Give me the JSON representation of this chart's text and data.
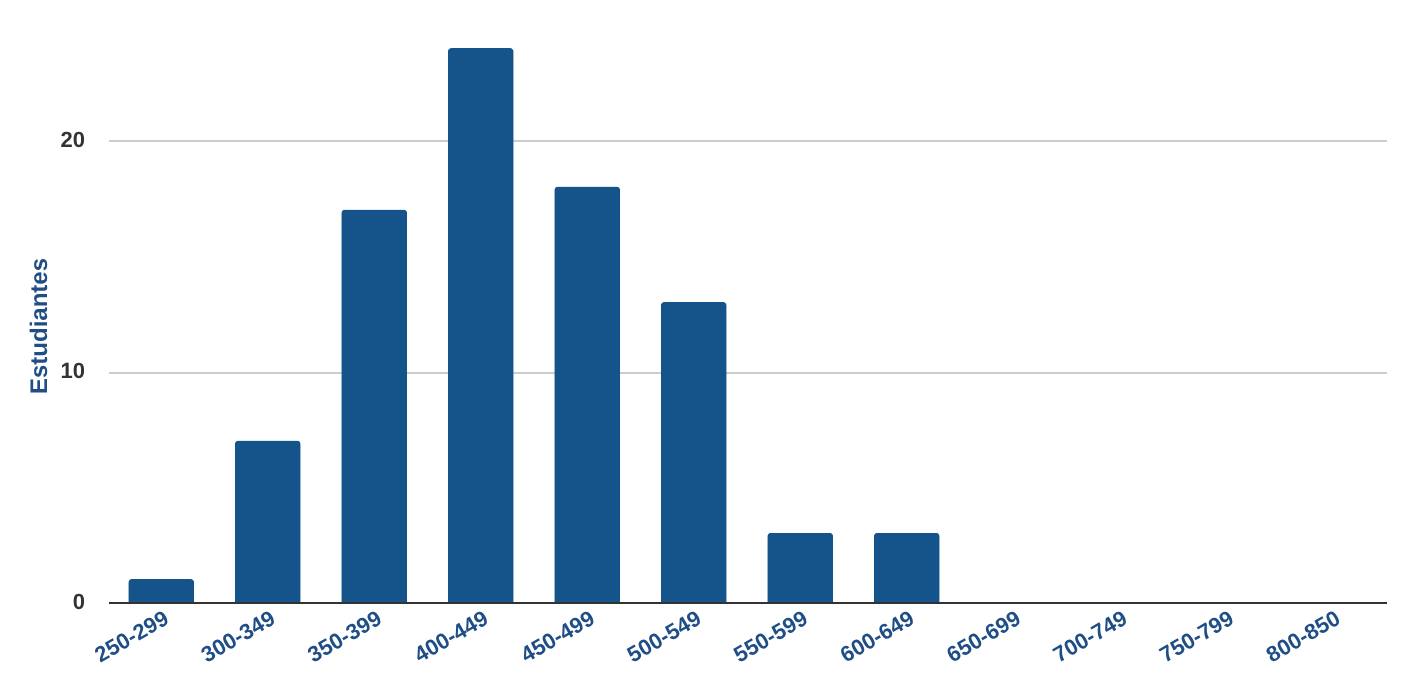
{
  "chart_data": {
    "type": "bar",
    "ylabel": "Estudiantes",
    "categories": [
      "250-299",
      "300-349",
      "350-399",
      "400-449",
      "450-499",
      "500-549",
      "550-599",
      "600-649",
      "650-699",
      "700-749",
      "750-799",
      "800-850"
    ],
    "values": [
      1,
      7,
      17,
      24,
      18,
      13,
      3,
      3,
      0,
      0,
      0,
      0
    ],
    "color": "#15548a",
    "ylim": [
      0,
      24
    ],
    "yticks": [
      0,
      10,
      20
    ],
    "grid": "y"
  }
}
